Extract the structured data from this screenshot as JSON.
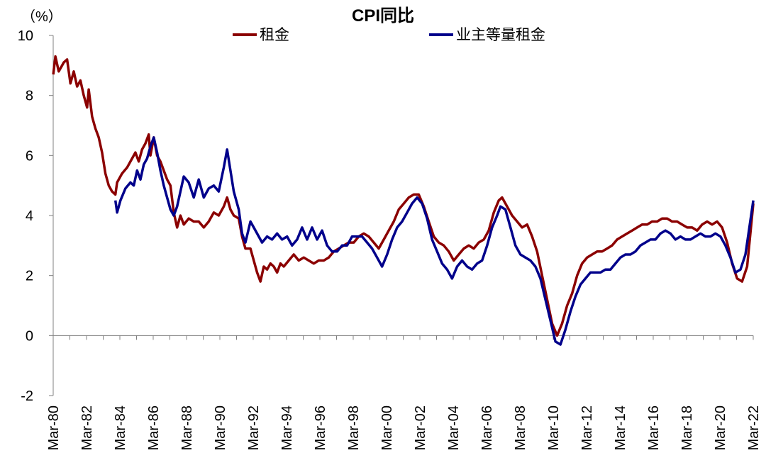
{
  "chart_data": {
    "type": "line",
    "title": "CPI同比",
    "unit_label": "（%）",
    "ylim": [
      -2,
      10
    ],
    "yticks": [
      -2,
      0,
      2,
      4,
      6,
      8,
      10
    ],
    "ytick_labels": [
      "-2",
      "0",
      "2",
      "4",
      "6",
      "8",
      "10"
    ],
    "negative_tick_color": "#ff0000",
    "xlim": [
      1980.167,
      2022.167
    ],
    "xticks": [
      1980.167,
      1982.167,
      1984.167,
      1986.167,
      1988.167,
      1990.167,
      1992.167,
      1994.167,
      1996.167,
      1998.167,
      2000.167,
      2002.167,
      2004.167,
      2006.167,
      2008.167,
      2010.167,
      2012.167,
      2014.167,
      2016.167,
      2018.167,
      2020.167,
      2022.167
    ],
    "xtick_labels": [
      "Mar-80",
      "Mar-82",
      "Mar-84",
      "Mar-86",
      "Mar-88",
      "Mar-90",
      "Mar-92",
      "Mar-94",
      "Mar-96",
      "Mar-98",
      "Mar-00",
      "Mar-02",
      "Mar-04",
      "Mar-06",
      "Mar-08",
      "Mar-10",
      "Mar-12",
      "Mar-14",
      "Mar-16",
      "Mar-18",
      "Mar-20",
      "Mar-22"
    ],
    "grid": false,
    "legend_position": "top-center",
    "series": [
      {
        "name": "租金",
        "color": "#8b0000",
        "points": [
          [
            1980.17,
            8.7
          ],
          [
            1980.3,
            9.3
          ],
          [
            1980.5,
            8.8
          ],
          [
            1980.8,
            9.1
          ],
          [
            1981.0,
            9.2
          ],
          [
            1981.2,
            8.4
          ],
          [
            1981.4,
            8.8
          ],
          [
            1981.6,
            8.3
          ],
          [
            1981.8,
            8.5
          ],
          [
            1982.0,
            8.0
          ],
          [
            1982.2,
            7.6
          ],
          [
            1982.3,
            8.2
          ],
          [
            1982.5,
            7.3
          ],
          [
            1982.7,
            6.9
          ],
          [
            1982.9,
            6.6
          ],
          [
            1983.1,
            6.1
          ],
          [
            1983.3,
            5.4
          ],
          [
            1983.5,
            5.0
          ],
          [
            1983.7,
            4.8
          ],
          [
            1983.9,
            4.7
          ],
          [
            1984.0,
            5.1
          ],
          [
            1984.3,
            5.4
          ],
          [
            1984.6,
            5.6
          ],
          [
            1984.9,
            5.9
          ],
          [
            1985.1,
            6.1
          ],
          [
            1985.3,
            5.8
          ],
          [
            1985.5,
            6.2
          ],
          [
            1985.7,
            6.4
          ],
          [
            1985.9,
            6.7
          ],
          [
            1986.0,
            6.0
          ],
          [
            1986.2,
            6.6
          ],
          [
            1986.4,
            6.0
          ],
          [
            1986.6,
            5.8
          ],
          [
            1986.8,
            5.5
          ],
          [
            1987.0,
            5.2
          ],
          [
            1987.2,
            5.0
          ],
          [
            1987.4,
            4.1
          ],
          [
            1987.6,
            3.6
          ],
          [
            1987.8,
            4.0
          ],
          [
            1988.0,
            3.7
          ],
          [
            1988.3,
            3.9
          ],
          [
            1988.6,
            3.8
          ],
          [
            1988.9,
            3.8
          ],
          [
            1989.2,
            3.6
          ],
          [
            1989.5,
            3.8
          ],
          [
            1989.8,
            4.1
          ],
          [
            1990.1,
            4.0
          ],
          [
            1990.4,
            4.3
          ],
          [
            1990.6,
            4.6
          ],
          [
            1990.8,
            4.2
          ],
          [
            1991.0,
            4.0
          ],
          [
            1991.3,
            3.9
          ],
          [
            1991.5,
            3.3
          ],
          [
            1991.7,
            2.9
          ],
          [
            1992.0,
            2.9
          ],
          [
            1992.2,
            2.5
          ],
          [
            1992.4,
            2.1
          ],
          [
            1992.6,
            1.8
          ],
          [
            1992.8,
            2.3
          ],
          [
            1993.0,
            2.2
          ],
          [
            1993.2,
            2.4
          ],
          [
            1993.4,
            2.3
          ],
          [
            1993.6,
            2.1
          ],
          [
            1993.8,
            2.4
          ],
          [
            1994.0,
            2.3
          ],
          [
            1994.3,
            2.5
          ],
          [
            1994.6,
            2.7
          ],
          [
            1994.9,
            2.5
          ],
          [
            1995.2,
            2.6
          ],
          [
            1995.5,
            2.5
          ],
          [
            1995.8,
            2.4
          ],
          [
            1996.1,
            2.5
          ],
          [
            1996.4,
            2.5
          ],
          [
            1996.7,
            2.6
          ],
          [
            1997.0,
            2.8
          ],
          [
            1997.3,
            2.9
          ],
          [
            1997.6,
            3.0
          ],
          [
            1997.9,
            3.1
          ],
          [
            1998.2,
            3.1
          ],
          [
            1998.5,
            3.3
          ],
          [
            1998.8,
            3.4
          ],
          [
            1999.1,
            3.3
          ],
          [
            1999.4,
            3.1
          ],
          [
            1999.7,
            2.9
          ],
          [
            2000.0,
            3.2
          ],
          [
            2000.3,
            3.5
          ],
          [
            2000.6,
            3.8
          ],
          [
            2000.9,
            4.2
          ],
          [
            2001.2,
            4.4
          ],
          [
            2001.5,
            4.6
          ],
          [
            2001.8,
            4.7
          ],
          [
            2002.1,
            4.7
          ],
          [
            2002.4,
            4.3
          ],
          [
            2002.7,
            3.8
          ],
          [
            2003.0,
            3.3
          ],
          [
            2003.3,
            3.1
          ],
          [
            2003.6,
            3.0
          ],
          [
            2003.9,
            2.8
          ],
          [
            2004.2,
            2.5
          ],
          [
            2004.5,
            2.7
          ],
          [
            2004.8,
            2.9
          ],
          [
            2005.1,
            3.0
          ],
          [
            2005.4,
            2.9
          ],
          [
            2005.7,
            3.1
          ],
          [
            2006.0,
            3.2
          ],
          [
            2006.3,
            3.5
          ],
          [
            2006.6,
            4.1
          ],
          [
            2006.9,
            4.5
          ],
          [
            2007.1,
            4.6
          ],
          [
            2007.4,
            4.3
          ],
          [
            2007.7,
            4.0
          ],
          [
            2008.0,
            3.8
          ],
          [
            2008.3,
            3.6
          ],
          [
            2008.6,
            3.7
          ],
          [
            2008.9,
            3.3
          ],
          [
            2009.2,
            2.8
          ],
          [
            2009.5,
            2.0
          ],
          [
            2009.8,
            1.2
          ],
          [
            2010.1,
            0.4
          ],
          [
            2010.4,
            0.0
          ],
          [
            2010.7,
            0.4
          ],
          [
            2011.0,
            1.0
          ],
          [
            2011.3,
            1.4
          ],
          [
            2011.6,
            2.0
          ],
          [
            2011.9,
            2.4
          ],
          [
            2012.2,
            2.6
          ],
          [
            2012.5,
            2.7
          ],
          [
            2012.8,
            2.8
          ],
          [
            2013.1,
            2.8
          ],
          [
            2013.4,
            2.9
          ],
          [
            2013.7,
            3.0
          ],
          [
            2014.0,
            3.2
          ],
          [
            2014.3,
            3.3
          ],
          [
            2014.6,
            3.4
          ],
          [
            2014.9,
            3.5
          ],
          [
            2015.2,
            3.6
          ],
          [
            2015.5,
            3.7
          ],
          [
            2015.8,
            3.7
          ],
          [
            2016.1,
            3.8
          ],
          [
            2016.4,
            3.8
          ],
          [
            2016.7,
            3.9
          ],
          [
            2017.0,
            3.9
          ],
          [
            2017.3,
            3.8
          ],
          [
            2017.6,
            3.8
          ],
          [
            2017.9,
            3.7
          ],
          [
            2018.2,
            3.6
          ],
          [
            2018.5,
            3.6
          ],
          [
            2018.8,
            3.5
          ],
          [
            2019.1,
            3.7
          ],
          [
            2019.4,
            3.8
          ],
          [
            2019.7,
            3.7
          ],
          [
            2020.0,
            3.8
          ],
          [
            2020.3,
            3.6
          ],
          [
            2020.6,
            3.1
          ],
          [
            2020.9,
            2.4
          ],
          [
            2021.2,
            1.9
          ],
          [
            2021.5,
            1.8
          ],
          [
            2021.8,
            2.3
          ],
          [
            2022.17,
            4.4
          ]
        ]
      },
      {
        "name": "业主等量租金",
        "color": "#00008b",
        "points": [
          [
            1983.9,
            4.5
          ],
          [
            1984.0,
            4.1
          ],
          [
            1984.2,
            4.5
          ],
          [
            1984.5,
            4.9
          ],
          [
            1984.8,
            5.1
          ],
          [
            1985.0,
            5.0
          ],
          [
            1985.2,
            5.5
          ],
          [
            1985.4,
            5.2
          ],
          [
            1985.6,
            5.7
          ],
          [
            1985.8,
            5.9
          ],
          [
            1986.0,
            6.3
          ],
          [
            1986.2,
            6.6
          ],
          [
            1986.4,
            6.1
          ],
          [
            1986.6,
            5.5
          ],
          [
            1986.8,
            5.0
          ],
          [
            1987.0,
            4.6
          ],
          [
            1987.2,
            4.2
          ],
          [
            1987.4,
            4.0
          ],
          [
            1987.6,
            4.3
          ],
          [
            1987.8,
            4.8
          ],
          [
            1988.0,
            5.3
          ],
          [
            1988.3,
            5.1
          ],
          [
            1988.6,
            4.6
          ],
          [
            1988.9,
            5.2
          ],
          [
            1989.2,
            4.6
          ],
          [
            1989.5,
            4.9
          ],
          [
            1989.8,
            5.0
          ],
          [
            1990.1,
            4.8
          ],
          [
            1990.4,
            5.6
          ],
          [
            1990.6,
            6.2
          ],
          [
            1990.8,
            5.5
          ],
          [
            1991.0,
            4.8
          ],
          [
            1991.3,
            4.2
          ],
          [
            1991.5,
            3.4
          ],
          [
            1991.7,
            3.1
          ],
          [
            1992.0,
            3.8
          ],
          [
            1992.2,
            3.6
          ],
          [
            1992.4,
            3.4
          ],
          [
            1992.7,
            3.1
          ],
          [
            1993.0,
            3.3
          ],
          [
            1993.3,
            3.2
          ],
          [
            1993.6,
            3.4
          ],
          [
            1993.9,
            3.2
          ],
          [
            1994.2,
            3.3
          ],
          [
            1994.5,
            3.0
          ],
          [
            1994.8,
            3.2
          ],
          [
            1995.1,
            3.6
          ],
          [
            1995.4,
            3.2
          ],
          [
            1995.7,
            3.6
          ],
          [
            1996.0,
            3.2
          ],
          [
            1996.3,
            3.5
          ],
          [
            1996.6,
            3.0
          ],
          [
            1996.9,
            2.8
          ],
          [
            1997.2,
            2.8
          ],
          [
            1997.5,
            3.0
          ],
          [
            1997.8,
            3.0
          ],
          [
            1998.1,
            3.3
          ],
          [
            1998.4,
            3.3
          ],
          [
            1998.7,
            3.3
          ],
          [
            1999.0,
            3.1
          ],
          [
            1999.3,
            2.9
          ],
          [
            1999.6,
            2.6
          ],
          [
            1999.9,
            2.3
          ],
          [
            2000.2,
            2.7
          ],
          [
            2000.5,
            3.2
          ],
          [
            2000.8,
            3.6
          ],
          [
            2001.1,
            3.8
          ],
          [
            2001.4,
            4.1
          ],
          [
            2001.7,
            4.4
          ],
          [
            2002.0,
            4.6
          ],
          [
            2002.3,
            4.4
          ],
          [
            2002.6,
            3.9
          ],
          [
            2002.9,
            3.2
          ],
          [
            2003.2,
            2.8
          ],
          [
            2003.5,
            2.4
          ],
          [
            2003.8,
            2.2
          ],
          [
            2004.1,
            1.9
          ],
          [
            2004.4,
            2.3
          ],
          [
            2004.7,
            2.5
          ],
          [
            2005.0,
            2.3
          ],
          [
            2005.3,
            2.2
          ],
          [
            2005.6,
            2.4
          ],
          [
            2005.9,
            2.5
          ],
          [
            2006.2,
            3.0
          ],
          [
            2006.5,
            3.6
          ],
          [
            2006.8,
            4.0
          ],
          [
            2007.0,
            4.3
          ],
          [
            2007.3,
            4.2
          ],
          [
            2007.6,
            3.6
          ],
          [
            2007.9,
            3.0
          ],
          [
            2008.2,
            2.7
          ],
          [
            2008.5,
            2.6
          ],
          [
            2008.8,
            2.5
          ],
          [
            2009.1,
            2.3
          ],
          [
            2009.4,
            1.9
          ],
          [
            2009.7,
            1.2
          ],
          [
            2010.0,
            0.5
          ],
          [
            2010.3,
            -0.2
          ],
          [
            2010.6,
            -0.3
          ],
          [
            2010.9,
            0.2
          ],
          [
            2011.2,
            0.8
          ],
          [
            2011.5,
            1.3
          ],
          [
            2011.8,
            1.7
          ],
          [
            2012.1,
            1.9
          ],
          [
            2012.4,
            2.1
          ],
          [
            2012.7,
            2.1
          ],
          [
            2013.0,
            2.1
          ],
          [
            2013.3,
            2.2
          ],
          [
            2013.6,
            2.2
          ],
          [
            2013.9,
            2.4
          ],
          [
            2014.2,
            2.6
          ],
          [
            2014.5,
            2.7
          ],
          [
            2014.8,
            2.7
          ],
          [
            2015.1,
            2.8
          ],
          [
            2015.4,
            3.0
          ],
          [
            2015.7,
            3.1
          ],
          [
            2016.0,
            3.2
          ],
          [
            2016.3,
            3.2
          ],
          [
            2016.6,
            3.4
          ],
          [
            2016.9,
            3.5
          ],
          [
            2017.2,
            3.4
          ],
          [
            2017.5,
            3.2
          ],
          [
            2017.8,
            3.3
          ],
          [
            2018.1,
            3.2
          ],
          [
            2018.4,
            3.2
          ],
          [
            2018.7,
            3.3
          ],
          [
            2019.0,
            3.4
          ],
          [
            2019.3,
            3.3
          ],
          [
            2019.6,
            3.3
          ],
          [
            2019.9,
            3.4
          ],
          [
            2020.2,
            3.3
          ],
          [
            2020.5,
            3.0
          ],
          [
            2020.8,
            2.6
          ],
          [
            2021.1,
            2.1
          ],
          [
            2021.4,
            2.2
          ],
          [
            2021.7,
            2.7
          ],
          [
            2022.17,
            4.5
          ]
        ]
      }
    ]
  }
}
